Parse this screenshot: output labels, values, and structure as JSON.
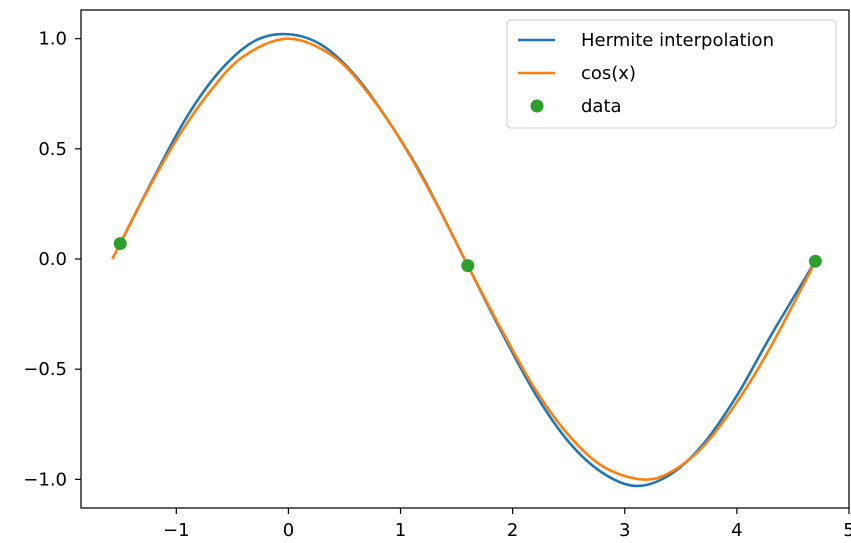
{
  "chart_data": {
    "type": "line",
    "title": "",
    "xlabel": "",
    "ylabel": "",
    "xlim": [
      -1.85,
      5.0
    ],
    "ylim": [
      -1.13,
      1.13
    ],
    "xticks": [
      -1,
      0,
      1,
      2,
      3,
      4,
      5
    ],
    "xtick_labels": [
      "−1",
      "0",
      "1",
      "2",
      "3",
      "4",
      "5"
    ],
    "yticks": [
      -1.0,
      -0.5,
      0.0,
      0.5,
      1.0
    ],
    "ytick_labels": [
      "−1.0",
      "−0.5",
      "0.0",
      "0.5",
      "1.0"
    ],
    "legend_position": "top-right",
    "grid": false,
    "series": [
      {
        "name": "Hermite interpolation",
        "kind": "line",
        "color": "#1f77b4",
        "x": [
          -1.5,
          -1.2,
          -0.9,
          -0.6,
          -0.3,
          0.0,
          0.3,
          0.6,
          0.9,
          1.2,
          1.6,
          1.9,
          2.2,
          2.5,
          2.8,
          3.1,
          3.4,
          3.7,
          4.0,
          4.3,
          4.7
        ],
        "y": [
          0.07,
          0.37,
          0.65,
          0.86,
          0.99,
          1.02,
          0.97,
          0.83,
          0.62,
          0.37,
          -0.03,
          -0.33,
          -0.61,
          -0.83,
          -0.97,
          -1.03,
          -0.98,
          -0.84,
          -0.62,
          -0.35,
          -0.01
        ]
      },
      {
        "name": "cos(x)",
        "kind": "line",
        "color": "#ff7f0e",
        "x": [
          -1.5708,
          -1.3,
          -1.0,
          -0.7,
          -0.4,
          0.0,
          0.4,
          0.7,
          1.0,
          1.3,
          1.6,
          1.9,
          2.2,
          2.5,
          2.8,
          3.1416,
          3.4,
          3.7,
          4.0,
          4.3,
          4.7124
        ],
        "y": [
          0.0,
          0.27,
          0.54,
          0.76,
          0.92,
          1.0,
          0.92,
          0.76,
          0.54,
          0.27,
          -0.03,
          -0.32,
          -0.59,
          -0.8,
          -0.94,
          -1.0,
          -0.97,
          -0.85,
          -0.65,
          -0.4,
          0.0
        ]
      },
      {
        "name": "data",
        "kind": "scatter",
        "color": "#2ca02c",
        "x": [
          -1.5,
          1.6,
          4.7
        ],
        "y": [
          0.07,
          -0.03,
          -0.01
        ]
      }
    ]
  }
}
